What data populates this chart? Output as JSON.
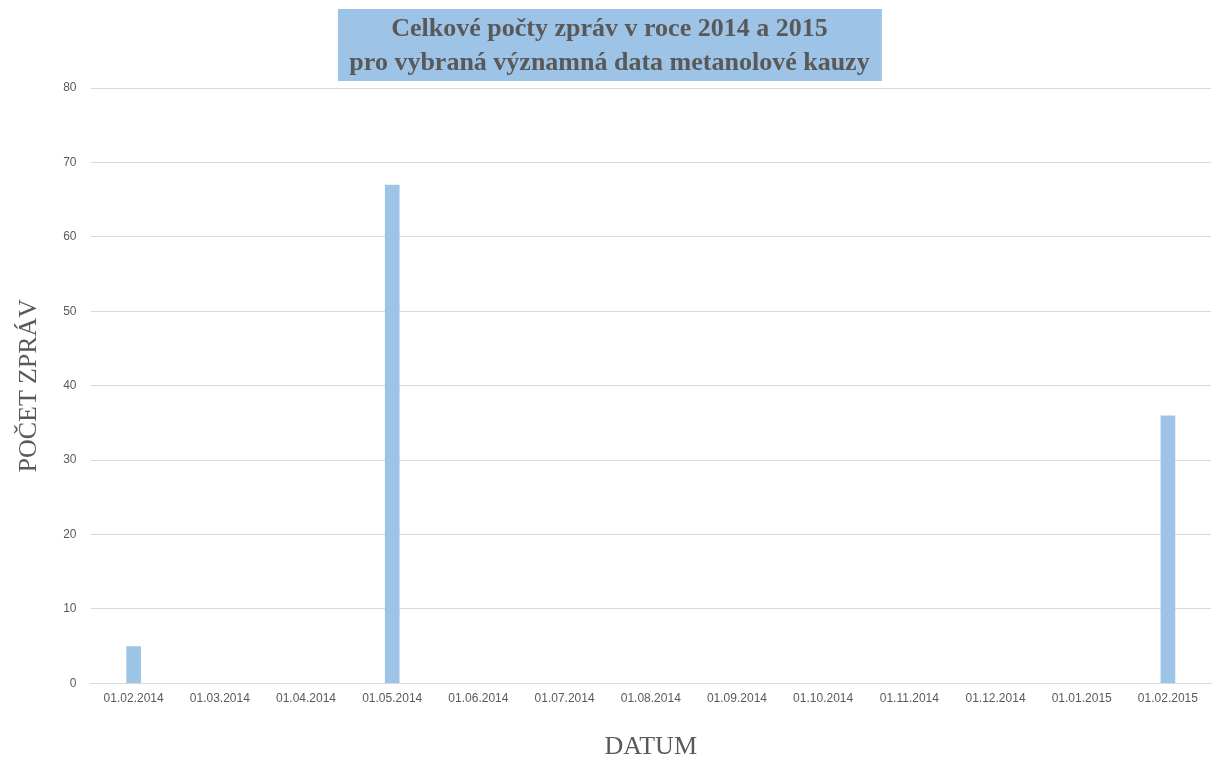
{
  "chart_data": {
    "type": "bar",
    "title": "Celkové počty zpráv v roce 2014 a 2015\npro vybraná významná data metanolové kauzy",
    "xlabel": "DATUM",
    "ylabel": "POČET ZPRÁV",
    "categories": [
      "01.02.2014",
      "01.03.2014",
      "01.04.2014",
      "01.05.2014",
      "01.06.2014",
      "01.07.2014",
      "01.08.2014",
      "01.09.2014",
      "01.10.2014",
      "01.11.2014",
      "01.12.2014",
      "01.01.2015",
      "01.02.2015"
    ],
    "values": [
      5,
      null,
      null,
      67,
      null,
      null,
      null,
      null,
      null,
      null,
      null,
      null,
      36
    ],
    "color": "#9dc3e6",
    "ylim": [
      0,
      80
    ],
    "yticks": [
      0,
      10,
      20,
      30,
      40,
      50,
      60,
      70,
      80
    ],
    "grid": "y"
  }
}
